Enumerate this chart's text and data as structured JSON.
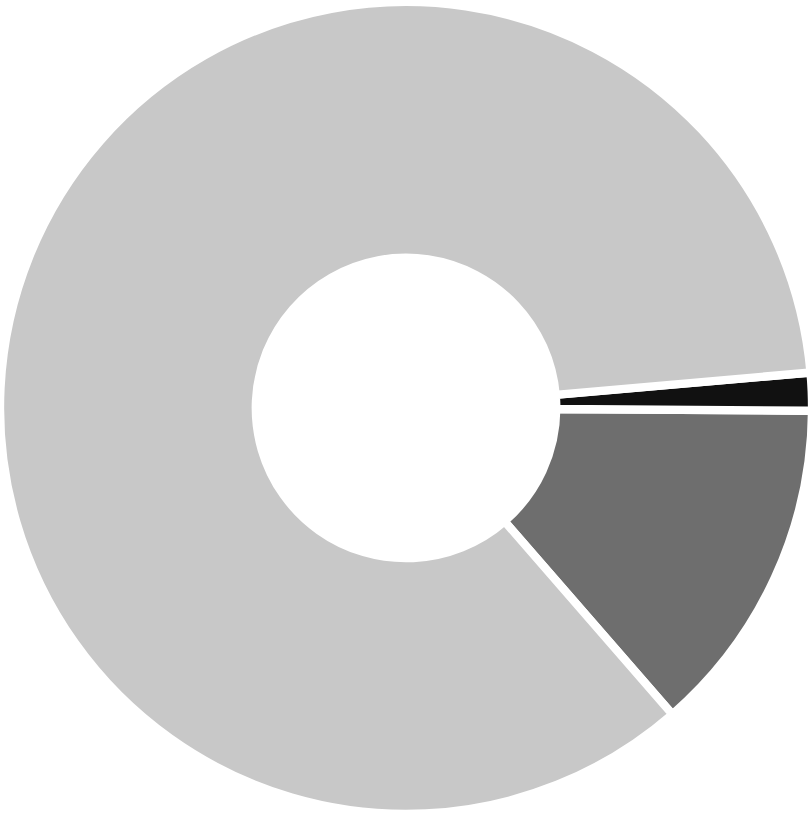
{
  "chart_data": {
    "type": "donut",
    "categories": [
      null,
      null,
      null
    ],
    "values": [
      13.5,
      1.5,
      85
    ],
    "colors": [
      "#6e6e6e",
      "#111111",
      "#c8c8c8"
    ]
  }
}
